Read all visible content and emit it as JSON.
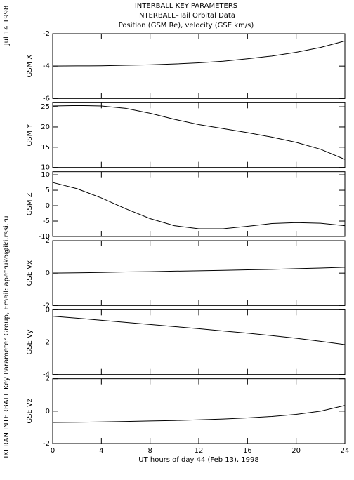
{
  "titles": [
    "INTERBALL KEY PARAMETERS",
    "INTERBALL–Tail Orbital Data",
    "Position (GSM Re), velocity (GSE km/s)"
  ],
  "date": "Jul 14 1998",
  "credit": "IKI RAN INTERBALL Key Parameter Group, Email: apetruko@iki.rssi.ru",
  "x_axis": {
    "label": "UT hours of day  44 (Feb 13), 1998",
    "xlim": [
      0,
      24
    ],
    "xticks": [
      0,
      4,
      8,
      12,
      16,
      20,
      24
    ],
    "x": [
      0,
      2,
      4,
      6,
      8,
      10,
      12,
      14,
      16,
      18,
      20,
      22,
      24
    ]
  },
  "chart_data": [
    {
      "type": "line",
      "ylabel": "GSM X",
      "ylim": [
        -6,
        -2
      ],
      "yticks": [
        -2,
        -4,
        -6
      ],
      "values": [
        -4.0,
        -3.99,
        -3.98,
        -3.95,
        -3.92,
        -3.87,
        -3.8,
        -3.7,
        -3.55,
        -3.38,
        -3.15,
        -2.85,
        -2.45
      ]
    },
    {
      "type": "line",
      "ylabel": "GSM Y",
      "ylim": [
        10,
        26
      ],
      "yticks": [
        10,
        15,
        20,
        25
      ],
      "values": [
        25.2,
        25.3,
        25.2,
        24.6,
        23.4,
        21.9,
        20.6,
        19.6,
        18.6,
        17.5,
        16.2,
        14.5,
        12.0
      ]
    },
    {
      "type": "line",
      "ylabel": "GSM Z",
      "ylim": [
        -10,
        11
      ],
      "yticks": [
        -10,
        -5,
        0,
        5,
        10
      ],
      "values": [
        7.5,
        5.5,
        2.5,
        -1.0,
        -4.2,
        -6.5,
        -7.5,
        -7.5,
        -6.7,
        -5.8,
        -5.5,
        -5.7,
        -6.5
      ]
    },
    {
      "type": "line",
      "ylabel": "GSE Vx",
      "ylim": [
        -2,
        2
      ],
      "yticks": [
        -2,
        0,
        2
      ],
      "values": [
        0.0,
        0.02,
        0.04,
        0.07,
        0.09,
        0.12,
        0.14,
        0.17,
        0.2,
        0.23,
        0.27,
        0.31,
        0.36
      ]
    },
    {
      "type": "line",
      "ylabel": "GSE Vy",
      "ylim": [
        -4,
        0
      ],
      "yticks": [
        0,
        -2,
        -4
      ],
      "values": [
        -0.4,
        -0.52,
        -0.65,
        -0.78,
        -0.91,
        -1.04,
        -1.17,
        -1.31,
        -1.45,
        -1.6,
        -1.76,
        -1.95,
        -2.15
      ]
    },
    {
      "type": "line",
      "ylabel": "GSE Vz",
      "ylim": [
        -2,
        2
      ],
      "yticks": [
        -2,
        0,
        2
      ],
      "values": [
        -0.7,
        -0.69,
        -0.67,
        -0.64,
        -0.61,
        -0.58,
        -0.54,
        -0.49,
        -0.42,
        -0.33,
        -0.2,
        0.0,
        0.35
      ]
    }
  ]
}
